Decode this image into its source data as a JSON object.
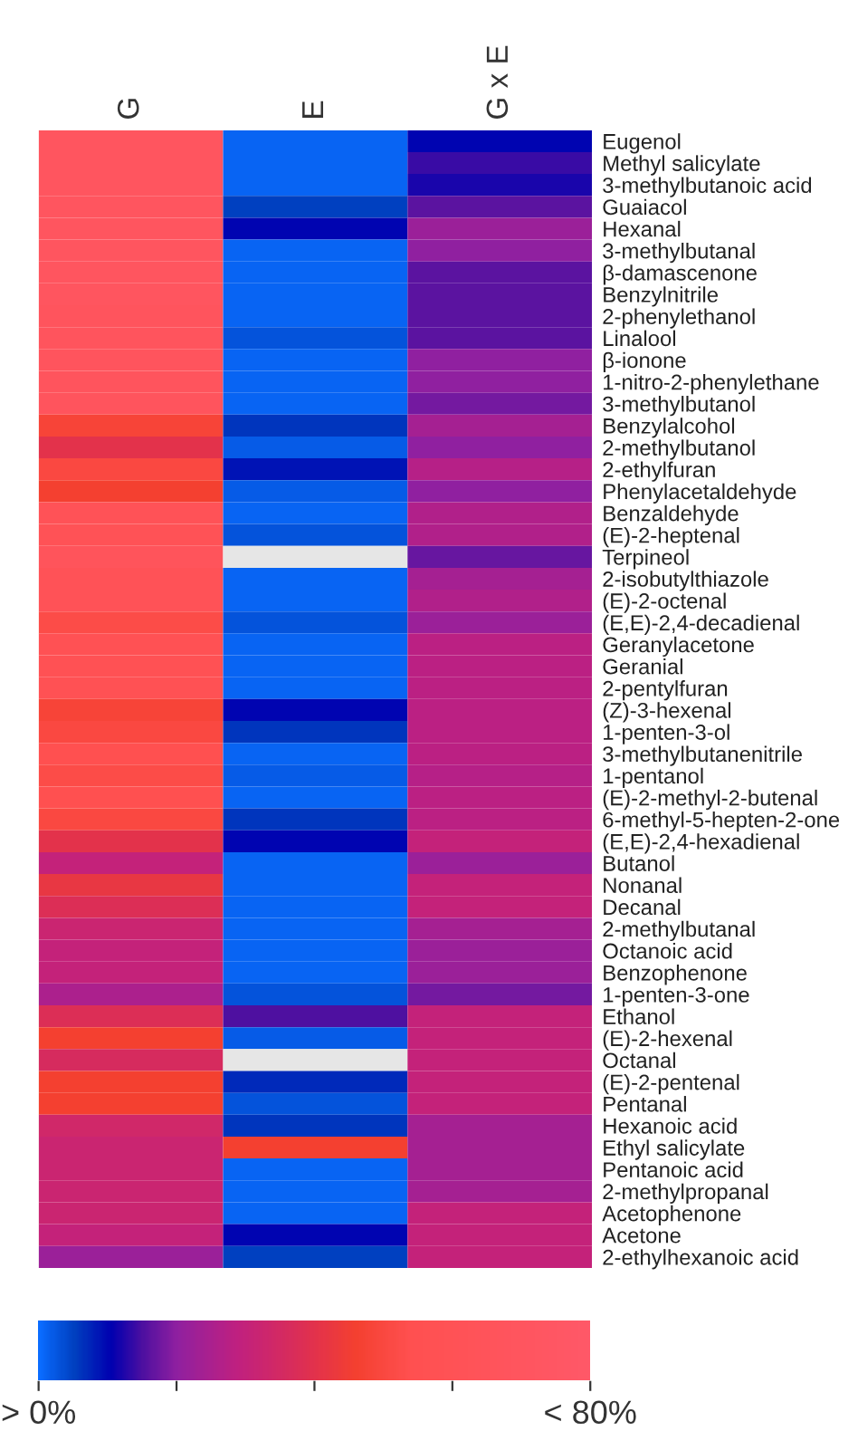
{
  "chart_data": {
    "type": "heatmap",
    "categories": [
      "G",
      "E",
      "G x E"
    ],
    "y_categories": [
      "Eugenol",
      "Methyl salicylate",
      "3-methylbutanoic acid",
      "Guaiacol",
      "Hexanal",
      "3-methylbutanal",
      "β-damascenone",
      "Benzylnitrile",
      "2-phenylethanol",
      "Linalool",
      "β-ionone",
      "1-nitro-2-phenylethane",
      "3-methylbutanol",
      "Benzylalcohol",
      "2-methylbutanol",
      "2-ethylfuran",
      "Phenylacetaldehyde",
      "Benzaldehyde",
      "(E)-2-heptenal",
      "Terpineol",
      "2-isobutylthiazole",
      "(E)-2-octenal",
      "(E,E)-2,4-decadienal",
      "Geranylacetone",
      "Geranial",
      "2-pentylfuran",
      "(Z)-3-hexenal",
      "1-penten-3-ol",
      "3-methylbutanenitrile",
      "1-pentanol",
      "(E)-2-methyl-2-butenal",
      "6-methyl-5-hepten-2-one",
      "(E,E)-2,4-hexadienal",
      "Butanol",
      "Nonanal",
      "Decanal",
      "2-methylbutanal",
      "Octanoic acid",
      "Benzophenone",
      "1-penten-3-one",
      "Ethanol",
      "(E)-2-hexenal",
      "Octanal",
      "(E)-2-pentenal",
      "Pentanal",
      "Hexanoic acid",
      "Ethyl salicylate",
      "Pentanoic acid",
      "2-methylpropanal",
      "Acetophenone",
      "Acetone",
      "2-ethylhexanoic acid"
    ],
    "cells": [
      [
        70,
        1,
        10
      ],
      [
        70,
        1,
        14
      ],
      [
        70,
        1,
        12
      ],
      [
        70,
        5,
        16
      ],
      [
        70,
        10,
        22
      ],
      [
        70,
        1,
        20
      ],
      [
        70,
        1,
        16
      ],
      [
        70,
        1,
        16
      ],
      [
        68,
        1,
        16
      ],
      [
        68,
        3,
        16
      ],
      [
        68,
        1,
        20
      ],
      [
        68,
        1,
        20
      ],
      [
        68,
        1,
        18
      ],
      [
        48,
        6,
        24
      ],
      [
        40,
        2,
        20
      ],
      [
        50,
        9,
        27
      ],
      [
        46,
        2,
        20
      ],
      [
        62,
        1,
        26
      ],
      [
        60,
        3,
        26
      ],
      [
        66,
        null,
        17
      ],
      [
        62,
        1,
        24
      ],
      [
        62,
        1,
        26
      ],
      [
        52,
        3,
        22
      ],
      [
        58,
        1,
        28
      ],
      [
        58,
        1,
        28
      ],
      [
        58,
        1,
        28
      ],
      [
        48,
        10,
        28
      ],
      [
        50,
        6,
        28
      ],
      [
        54,
        1,
        28
      ],
      [
        52,
        2,
        27
      ],
      [
        54,
        1,
        28
      ],
      [
        50,
        6,
        28
      ],
      [
        40,
        10,
        30
      ],
      [
        30,
        1,
        22
      ],
      [
        42,
        1,
        30
      ],
      [
        38,
        1,
        30
      ],
      [
        32,
        1,
        24
      ],
      [
        30,
        1,
        22
      ],
      [
        30,
        1,
        22
      ],
      [
        25,
        3,
        18
      ],
      [
        38,
        15,
        30
      ],
      [
        46,
        2,
        30
      ],
      [
        36,
        null,
        30
      ],
      [
        46,
        7,
        30
      ],
      [
        46,
        3,
        30
      ],
      [
        34,
        6,
        24
      ],
      [
        32,
        46,
        24
      ],
      [
        32,
        1,
        24
      ],
      [
        32,
        1,
        24
      ],
      [
        32,
        1,
        30
      ],
      [
        30,
        10,
        30
      ],
      [
        22,
        5,
        30
      ]
    ],
    "clim": [
      0,
      80
    ],
    "cticks": [
      {
        "value": 0,
        "label": "> 0%"
      },
      {
        "value": 20,
        "label": null
      },
      {
        "value": 40,
        "label": null
      },
      {
        "value": 60,
        "label": null
      },
      {
        "value": 80,
        "label": "< 80%"
      }
    ]
  }
}
